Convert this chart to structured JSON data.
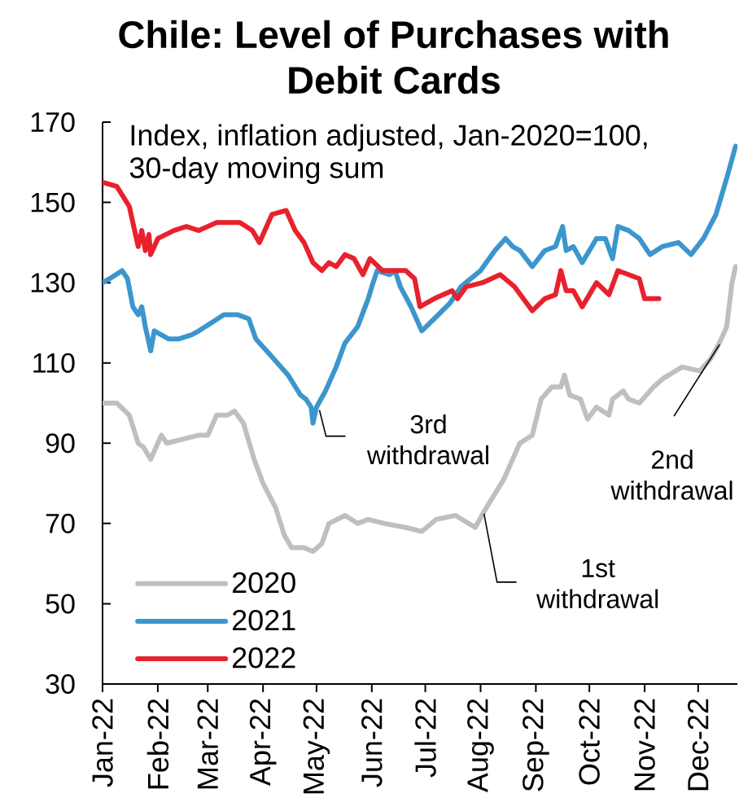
{
  "chart_data": {
    "type": "line",
    "title": "Chile: Level of Purchases with Debit Cards",
    "annotations": [
      "Index, inflation adjusted, Jan-2020=100, 30-day moving sum",
      {
        "text": "3rd withdrawal",
        "x": "2022-04-29",
        "y": 95
      },
      {
        "text": "1st withdrawal",
        "x": "2022-08-02",
        "y": 70
      },
      {
        "text": "2nd withdrawal",
        "x": "2022-12-13",
        "y": 115
      }
    ],
    "xlim": [
      "2022-01-01",
      "2022-12-23"
    ],
    "xticks": [
      {
        "value": "2022-01-01",
        "label": "Jan-22"
      },
      {
        "value": "2022-02-01",
        "label": "Feb-22"
      },
      {
        "value": "2022-03-01",
        "label": "Mar-22"
      },
      {
        "value": "2022-04-01",
        "label": "Apr-22"
      },
      {
        "value": "2022-05-01",
        "label": "May-22"
      },
      {
        "value": "2022-06-01",
        "label": "Jun-22"
      },
      {
        "value": "2022-07-01",
        "label": "Jul-22"
      },
      {
        "value": "2022-08-01",
        "label": "Aug-22"
      },
      {
        "value": "2022-09-01",
        "label": "Sep-22"
      },
      {
        "value": "2022-10-01",
        "label": "Oct-22"
      },
      {
        "value": "2022-11-01",
        "label": "Nov-22"
      },
      {
        "value": "2022-12-01",
        "label": "Dec-22"
      }
    ],
    "ylim": [
      30,
      170
    ],
    "yticks": [
      30,
      50,
      70,
      90,
      110,
      130,
      150,
      170
    ],
    "legend": "bottom left",
    "line_style": "solid",
    "series": [
      {
        "name": "2020",
        "color": "#bfbfbf",
        "x": [
          "2022-01-01",
          "2022-01-09",
          "2022-01-16",
          "2022-01-21",
          "2022-01-24",
          "2022-01-28",
          "2022-02-01",
          "2022-02-03",
          "2022-02-06",
          "2022-02-15",
          "2022-02-24",
          "2022-03-01",
          "2022-03-06",
          "2022-03-12",
          "2022-03-16",
          "2022-03-21",
          "2022-03-27",
          "2022-04-01",
          "2022-04-08",
          "2022-04-13",
          "2022-04-17",
          "2022-04-24",
          "2022-04-29",
          "2022-05-04",
          "2022-05-08",
          "2022-05-17",
          "2022-05-24",
          "2022-05-30",
          "2022-06-08",
          "2022-06-20",
          "2022-06-29",
          "2022-07-07",
          "2022-07-18",
          "2022-07-29",
          "2022-08-03",
          "2022-08-14",
          "2022-08-23",
          "2022-08-30",
          "2022-09-04",
          "2022-09-10",
          "2022-09-15",
          "2022-09-17",
          "2022-09-20",
          "2022-09-26",
          "2022-09-30",
          "2022-10-05",
          "2022-10-12",
          "2022-10-14",
          "2022-10-20",
          "2022-10-23",
          "2022-10-29",
          "2022-11-06",
          "2022-11-11",
          "2022-11-22",
          "2022-12-02",
          "2022-12-08",
          "2022-12-13",
          "2022-12-17",
          "2022-12-20",
          "2022-12-22"
        ],
        "values": [
          100,
          100,
          97,
          90,
          89,
          86,
          90,
          92,
          90,
          91,
          92,
          92,
          97,
          97,
          98,
          95,
          86,
          80,
          74,
          67,
          64,
          64,
          63,
          65,
          70,
          72,
          70,
          71,
          70,
          69,
          68,
          71,
          72,
          69,
          73,
          81,
          90,
          92,
          101,
          104,
          104,
          107,
          102,
          101,
          96,
          99,
          97,
          101,
          103,
          101,
          100,
          104,
          106,
          109,
          108,
          111,
          115,
          119,
          130,
          134
        ]
      },
      {
        "name": "2021",
        "color": "#3c96cd",
        "x": [
          "2022-01-01",
          "2022-01-05",
          "2022-01-12",
          "2022-01-15",
          "2022-01-18",
          "2022-01-21",
          "2022-01-23",
          "2022-01-25",
          "2022-01-28",
          "2022-01-30",
          "2022-02-07",
          "2022-02-13",
          "2022-02-20",
          "2022-02-24",
          "2022-03-03",
          "2022-03-10",
          "2022-03-18",
          "2022-03-24",
          "2022-03-28",
          "2022-04-01",
          "2022-04-05",
          "2022-04-15",
          "2022-04-22",
          "2022-04-25",
          "2022-04-28",
          "2022-04-29",
          "2022-05-01",
          "2022-05-06",
          "2022-05-12",
          "2022-05-17",
          "2022-05-24",
          "2022-05-30",
          "2022-06-01",
          "2022-06-04",
          "2022-06-11",
          "2022-06-14",
          "2022-06-17",
          "2022-06-23",
          "2022-06-29",
          "2022-07-06",
          "2022-07-15",
          "2022-07-21",
          "2022-08-01",
          "2022-08-09",
          "2022-08-15",
          "2022-08-19",
          "2022-08-23",
          "2022-08-30",
          "2022-09-06",
          "2022-09-12",
          "2022-09-16",
          "2022-09-18",
          "2022-09-22",
          "2022-09-27",
          "2022-10-05",
          "2022-10-10",
          "2022-10-14",
          "2022-10-17",
          "2022-10-23",
          "2022-10-29",
          "2022-11-04",
          "2022-11-11",
          "2022-11-20",
          "2022-11-27",
          "2022-12-04",
          "2022-12-11",
          "2022-12-17",
          "2022-12-22"
        ],
        "values": [
          130,
          131,
          133,
          131,
          124,
          122,
          124,
          119,
          113,
          118,
          116,
          116,
          117,
          118,
          120,
          122,
          122,
          121,
          116,
          114,
          112,
          107,
          102,
          101,
          99,
          95,
          99,
          103,
          109,
          115,
          119,
          126,
          129,
          133,
          132,
          133,
          129,
          124,
          118,
          121,
          125,
          129,
          133,
          138,
          141,
          139,
          138,
          134,
          138,
          139,
          144,
          138,
          139,
          135,
          141,
          141,
          136,
          144,
          143,
          141,
          137,
          139,
          140,
          137,
          141,
          147,
          156,
          164
        ]
      },
      {
        "name": "2022",
        "color": "#e8212d",
        "x": [
          "2022-01-01",
          "2022-01-09",
          "2022-01-16",
          "2022-01-21",
          "2022-01-23",
          "2022-01-25",
          "2022-01-27",
          "2022-01-28",
          "2022-02-01",
          "2022-02-10",
          "2022-02-17",
          "2022-02-24",
          "2022-03-06",
          "2022-03-12",
          "2022-03-19",
          "2022-03-26",
          "2022-03-30",
          "2022-04-02",
          "2022-04-06",
          "2022-04-14",
          "2022-04-19",
          "2022-04-24",
          "2022-04-29",
          "2022-05-04",
          "2022-05-08",
          "2022-05-12",
          "2022-05-17",
          "2022-05-22",
          "2022-05-27",
          "2022-05-31",
          "2022-06-07",
          "2022-06-20",
          "2022-06-25",
          "2022-06-28",
          "2022-07-06",
          "2022-07-16",
          "2022-07-19",
          "2022-07-24",
          "2022-08-02",
          "2022-08-12",
          "2022-08-20",
          "2022-08-30",
          "2022-09-06",
          "2022-09-12",
          "2022-09-15",
          "2022-09-18",
          "2022-09-22",
          "2022-09-27",
          "2022-10-05",
          "2022-10-12",
          "2022-10-17",
          "2022-10-23",
          "2022-10-29",
          "2022-11-01",
          "2022-11-09"
        ],
        "values": [
          155,
          154,
          149,
          139,
          143,
          138,
          142,
          137,
          141,
          143,
          144,
          143,
          145,
          145,
          145,
          143,
          140,
          143,
          147,
          148,
          143,
          140,
          135,
          133,
          135,
          134,
          137,
          136,
          132,
          136,
          133,
          133,
          131,
          124,
          126,
          128,
          126,
          129,
          130,
          132,
          129,
          123,
          126,
          127,
          133,
          128,
          128,
          124,
          130,
          127,
          133,
          132,
          131,
          126,
          126
        ]
      }
    ]
  }
}
